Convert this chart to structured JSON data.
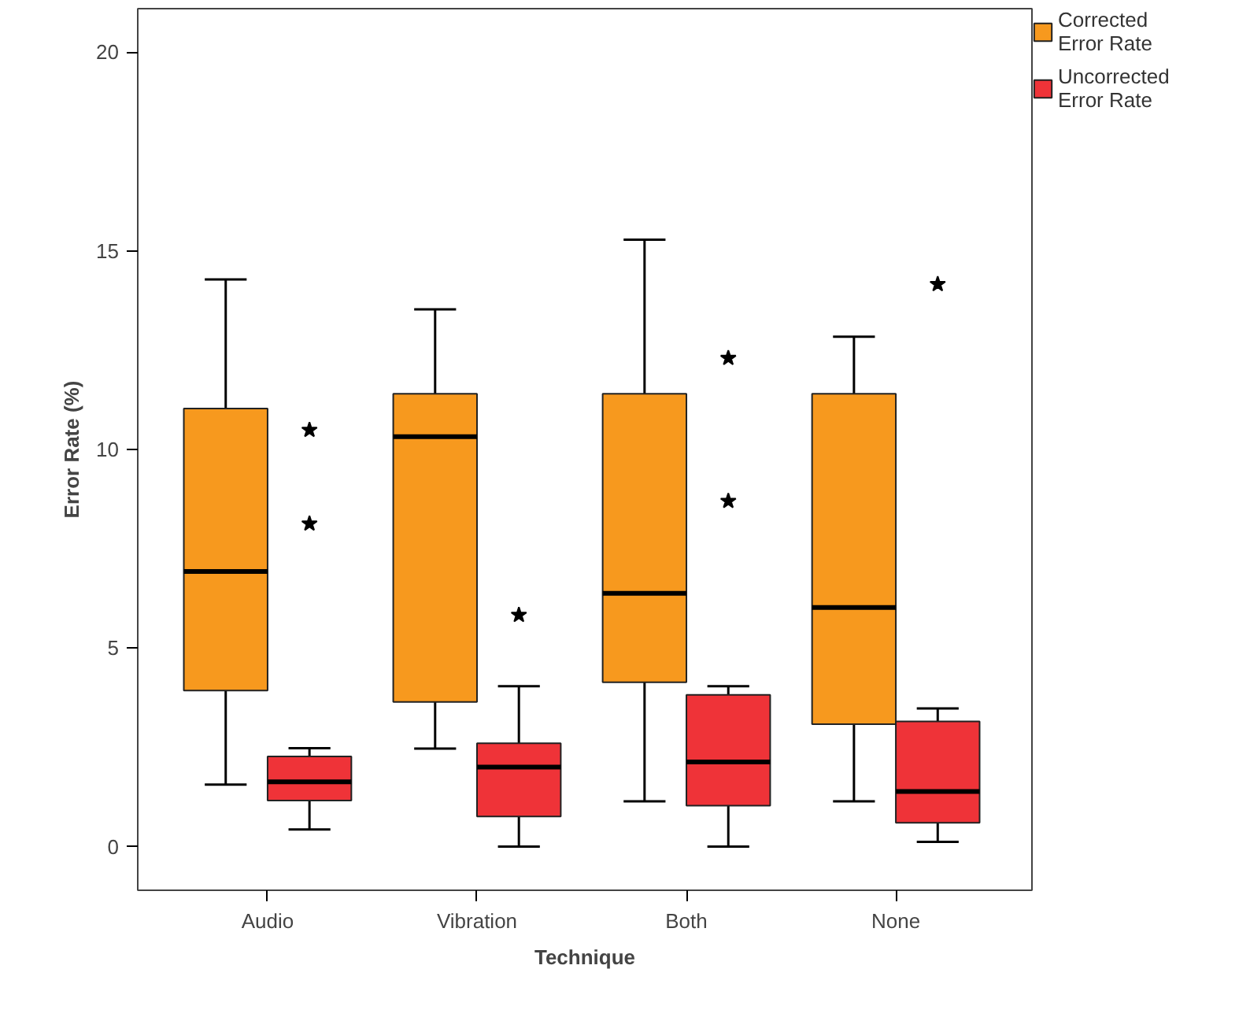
{
  "chart_data": {
    "type": "box",
    "xlabel": "Technique",
    "ylabel": "Error Rate (%)",
    "categories": [
      "Audio",
      "Vibration",
      "Both",
      "None"
    ],
    "ylim": [
      -1.1,
      21.1
    ],
    "yticks": [
      0,
      5,
      10,
      15,
      20
    ],
    "grid": false,
    "legend": "top right",
    "marker": "star",
    "series": [
      {
        "name": "Corrected Error Rate",
        "color": "#f7991e",
        "boxes": [
          {
            "low": 1.56,
            "q1": 3.93,
            "median": 6.93,
            "q3": 11.03,
            "high": 14.28
          },
          {
            "low": 2.47,
            "q1": 3.64,
            "median": 10.32,
            "q3": 11.4,
            "high": 13.53
          },
          {
            "low": 1.14,
            "q1": 4.14,
            "median": 6.38,
            "q3": 11.4,
            "high": 15.28
          },
          {
            "low": 1.14,
            "q1": 3.08,
            "median": 6.02,
            "q3": 11.4,
            "high": 12.84
          }
        ]
      },
      {
        "name": "Uncorrected Error Rate",
        "color": "#ef3338",
        "boxes": [
          {
            "low": 0.43,
            "q1": 1.16,
            "median": 1.63,
            "q3": 2.27,
            "high": 2.48,
            "outliers": [
              10.49,
              8.13
            ]
          },
          {
            "low": 0,
            "q1": 0.76,
            "median": 2.0,
            "q3": 2.6,
            "high": 4.04,
            "outliers": [
              5.83
            ]
          },
          {
            "low": 0,
            "q1": 1.03,
            "median": 2.13,
            "q3": 3.82,
            "high": 4.04,
            "outliers": [
              12.3,
              8.7
            ]
          },
          {
            "low": 0.12,
            "q1": 0.6,
            "median": 1.39,
            "q3": 3.15,
            "high": 3.48,
            "outliers": [
              14.16
            ]
          }
        ]
      }
    ]
  }
}
